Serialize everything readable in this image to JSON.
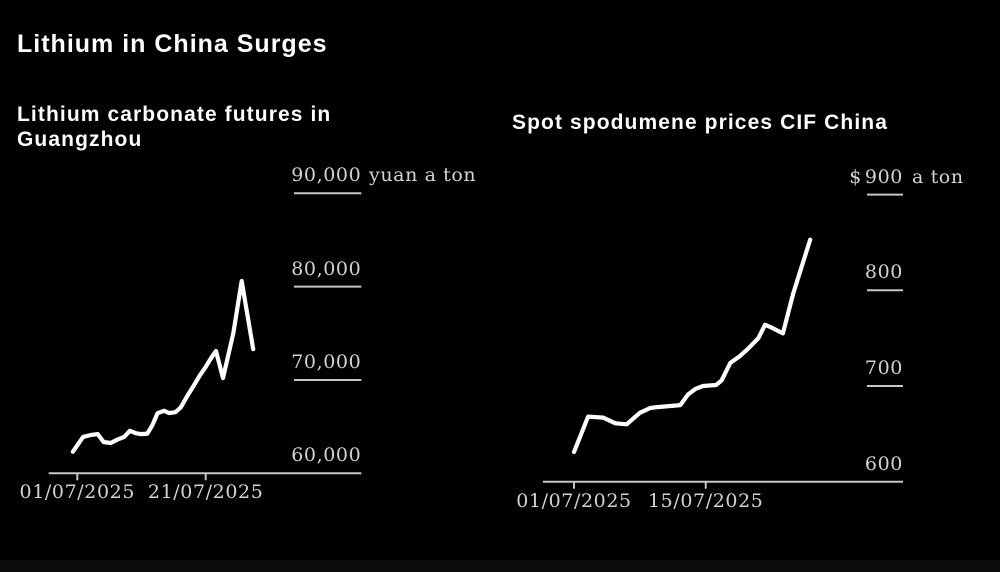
{
  "main_title": "Lithium in China Surges",
  "colors": {
    "background": "#000000",
    "title": "#ffffff",
    "labels": "#d6d4d1",
    "axis": "#c8c6c3",
    "line": "#ffffff"
  },
  "chart_data": [
    {
      "type": "line",
      "title": "Lithium carbonate futures in Guangzhou",
      "y_unit": "yuan a ton",
      "y_prefix": "",
      "legend_position": "none",
      "grid": "right-side tick dashes only",
      "x_days": [
        -0.7,
        0.9,
        2.1,
        3.2,
        4.1,
        5.2,
        6.2,
        7.3,
        8.2,
        9.1,
        9.9,
        10.9,
        11.7,
        12.5,
        13.5,
        14.3,
        15.3,
        16.1,
        17.1,
        18.2,
        19.1,
        20.0,
        20.8,
        21.6,
        22.7,
        24.3,
        25.6,
        27.4
      ],
      "values": [
        62300,
        63900,
        64100,
        64200,
        63350,
        63250,
        63600,
        63900,
        64550,
        64300,
        64200,
        64250,
        65150,
        66450,
        66700,
        66450,
        66550,
        67050,
        68250,
        69450,
        70500,
        71400,
        72300,
        73100,
        70200,
        75000,
        80600,
        73300
      ],
      "x_ticks": [
        {
          "day": 0,
          "label": "01/07/2025"
        },
        {
          "day": 20,
          "label": "21/07/2025"
        }
      ],
      "y_ticks": [
        {
          "value": 60000,
          "label": "60,000"
        },
        {
          "value": 70000,
          "label": "70,000"
        },
        {
          "value": 80000,
          "label": "80,000"
        },
        {
          "value": 90000,
          "label": "90,000"
        }
      ],
      "ylim": [
        60000,
        90000
      ],
      "line_color": "#ffffff"
    },
    {
      "type": "line",
      "title": "Spot spodumene prices CIF China",
      "y_unit": "a ton",
      "y_prefix": "$",
      "legend_position": "none",
      "grid": "right-side tick dashes only",
      "x_days": [
        0,
        1.5,
        3.1,
        4.4,
        5.6,
        7.0,
        8.1,
        8.9,
        11.3,
        12.1,
        12.9,
        13.7,
        15.1,
        15.7,
        16.6,
        17.6,
        18.5,
        19.6,
        20.3,
        21.0,
        22.2,
        23.3,
        25.1
      ],
      "values": [
        631,
        668,
        667,
        661,
        660,
        672,
        677,
        678,
        680,
        691,
        697,
        700,
        701,
        706,
        724,
        731,
        739,
        750,
        764,
        761,
        755,
        797,
        853
      ],
      "x_ticks": [
        {
          "day": 0,
          "label": "01/07/2025"
        },
        {
          "day": 14,
          "label": "15/07/2025"
        }
      ],
      "y_ticks": [
        {
          "value": 600,
          "label": "600"
        },
        {
          "value": 700,
          "label": "700"
        },
        {
          "value": 800,
          "label": "800"
        },
        {
          "value": 900,
          "label": "900"
        }
      ],
      "ylim": [
        600,
        900
      ],
      "line_color": "#ffffff"
    }
  ]
}
